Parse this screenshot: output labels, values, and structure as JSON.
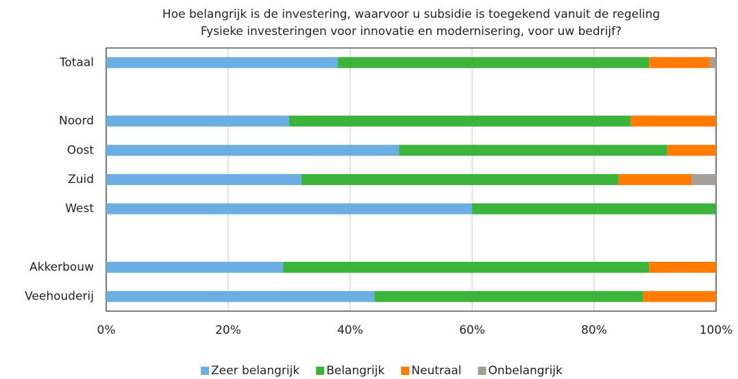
{
  "chart_data": {
    "type": "stacked_barh",
    "title": [
      "Hoe belangrijk is de investering, waarvoor u subsidie is toegekend vanuit de regeling",
      "Fysieke investeringen voor innovatie en modernisering, voor uw bedrijf?"
    ],
    "categories": [
      "Totaal",
      null,
      "Noord",
      "Oost",
      "Zuid",
      "West",
      null,
      "Akkerbouw",
      "Veehouderij"
    ],
    "series": [
      {
        "name": "Zeer belangrijk",
        "color": "#6aaee2",
        "values": [
          38,
          null,
          30,
          48,
          32,
          60,
          null,
          29,
          44
        ]
      },
      {
        "name": "Belangrijk",
        "color": "#3cb43c",
        "values": [
          51,
          null,
          56,
          44,
          52,
          40,
          null,
          60,
          44
        ]
      },
      {
        "name": "Neutraal",
        "color": "#ff7c00",
        "values": [
          10,
          null,
          14,
          8,
          12,
          0,
          null,
          11,
          12
        ]
      },
      {
        "name": "Onbelangrijk",
        "color": "#a69e98",
        "values": [
          1,
          null,
          0,
          0,
          4,
          0,
          null,
          0,
          0
        ]
      }
    ],
    "xlim": [
      0,
      100
    ],
    "xticks": [
      {
        "value": 0,
        "label": "0%"
      },
      {
        "value": 20,
        "label": "20%"
      },
      {
        "value": 40,
        "label": "40%"
      },
      {
        "value": 60,
        "label": "60%"
      },
      {
        "value": 80,
        "label": "80%"
      },
      {
        "value": 100,
        "label": "100%"
      }
    ],
    "grid": true,
    "legend": "bottom"
  }
}
